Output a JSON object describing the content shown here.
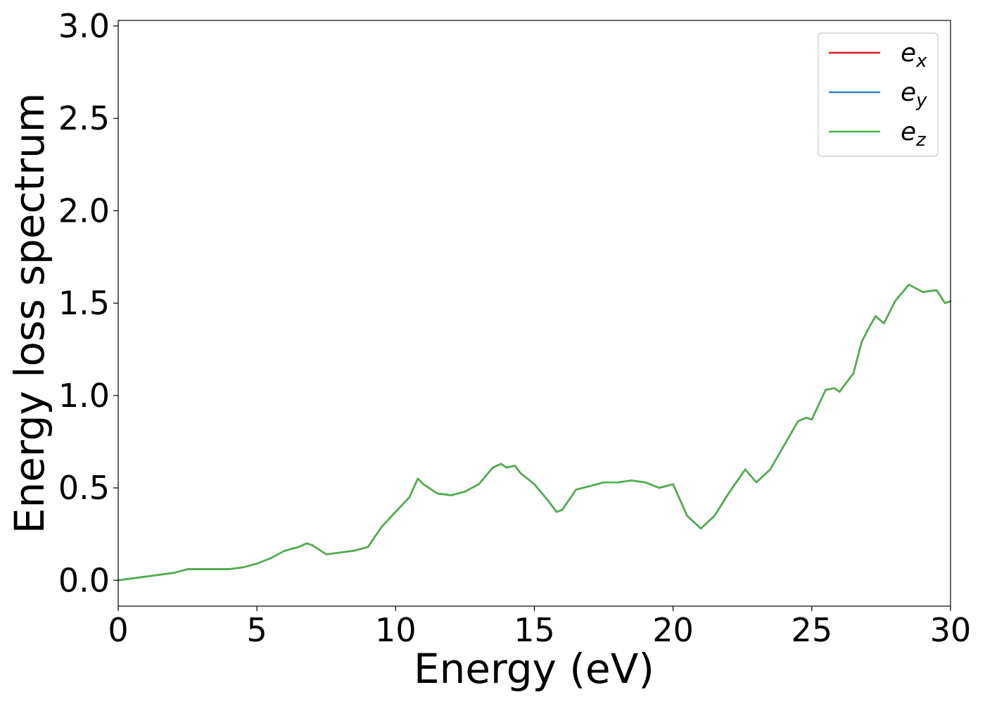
{
  "chart_data": {
    "type": "line",
    "title": "",
    "xlabel": "Energy (eV)",
    "ylabel": "Energy loss spectrum",
    "xlim": [
      0,
      30
    ],
    "ylim": [
      -0.14,
      3.03
    ],
    "xticks": [
      0,
      5,
      10,
      15,
      20,
      25,
      30
    ],
    "xtick_labels": [
      "0",
      "5",
      "10",
      "15",
      "20",
      "25",
      "30"
    ],
    "yticks": [
      0.0,
      0.5,
      1.0,
      1.5,
      2.0,
      2.5,
      3.0
    ],
    "ytick_labels": [
      "0.0",
      "0.5",
      "1.0",
      "1.5",
      "2.0",
      "2.5",
      "3.0"
    ],
    "grid": false,
    "legend_position": "top-right",
    "x": [
      0,
      0.5,
      1,
      1.5,
      2,
      2.5,
      3,
      3.5,
      4,
      4.5,
      5,
      5.5,
      6,
      6.5,
      6.8,
      7,
      7.5,
      8,
      8.5,
      9,
      9.5,
      10,
      10.5,
      10.8,
      11,
      11.5,
      12,
      12.5,
      13,
      13.5,
      13.8,
      14,
      14.3,
      14.5,
      15,
      15.5,
      15.8,
      16,
      16.5,
      17,
      17.5,
      18,
      18.5,
      19,
      19.5,
      20,
      20.5,
      21,
      21.5,
      22,
      22.6,
      23,
      23.5,
      24,
      24.5,
      24.8,
      25,
      25.5,
      25.8,
      26,
      26.5,
      26.8,
      27,
      27.3,
      27.6,
      28,
      28.5,
      29,
      29.5,
      29.8,
      30
    ],
    "series": [
      {
        "name": "e_x",
        "color": "#e41a1c",
        "y": [
          0.0,
          0.01,
          0.02,
          0.03,
          0.04,
          0.06,
          0.06,
          0.06,
          0.06,
          0.07,
          0.09,
          0.12,
          0.16,
          0.18,
          0.2,
          0.19,
          0.14,
          0.15,
          0.16,
          0.18,
          0.29,
          0.37,
          0.45,
          0.55,
          0.52,
          0.47,
          0.46,
          0.48,
          0.52,
          0.61,
          0.63,
          0.61,
          0.62,
          0.58,
          0.52,
          0.43,
          0.37,
          0.38,
          0.49,
          0.51,
          0.53,
          0.53,
          0.54,
          0.53,
          0.5,
          0.52,
          0.35,
          0.28,
          0.35,
          0.47,
          0.6,
          0.53,
          0.6,
          0.73,
          0.86,
          0.88,
          0.87,
          1.03,
          1.04,
          1.02,
          1.12,
          1.29,
          1.35,
          1.43,
          1.39,
          1.51,
          1.6,
          1.56,
          1.57,
          1.5,
          1.51
        ]
      },
      {
        "name": "e_y",
        "color": "#377eb8",
        "y": [
          0.0,
          0.01,
          0.02,
          0.03,
          0.04,
          0.06,
          0.06,
          0.06,
          0.06,
          0.07,
          0.09,
          0.12,
          0.16,
          0.18,
          0.2,
          0.19,
          0.14,
          0.15,
          0.16,
          0.18,
          0.29,
          0.37,
          0.45,
          0.55,
          0.52,
          0.47,
          0.46,
          0.48,
          0.52,
          0.61,
          0.63,
          0.61,
          0.62,
          0.58,
          0.52,
          0.43,
          0.37,
          0.38,
          0.49,
          0.51,
          0.53,
          0.53,
          0.54,
          0.53,
          0.5,
          0.52,
          0.35,
          0.28,
          0.35,
          0.47,
          0.6,
          0.53,
          0.6,
          0.73,
          0.86,
          0.88,
          0.87,
          1.03,
          1.04,
          1.02,
          1.12,
          1.29,
          1.35,
          1.43,
          1.39,
          1.51,
          1.6,
          1.56,
          1.57,
          1.5,
          1.51
        ]
      },
      {
        "name": "e_z",
        "color": "#4daf4a",
        "y": [
          0.0,
          0.01,
          0.02,
          0.03,
          0.04,
          0.06,
          0.06,
          0.06,
          0.06,
          0.07,
          0.09,
          0.12,
          0.16,
          0.18,
          0.2,
          0.19,
          0.14,
          0.15,
          0.16,
          0.18,
          0.29,
          0.37,
          0.45,
          0.55,
          0.52,
          0.47,
          0.46,
          0.48,
          0.52,
          0.61,
          0.63,
          0.61,
          0.62,
          0.58,
          0.52,
          0.43,
          0.37,
          0.38,
          0.49,
          0.51,
          0.53,
          0.53,
          0.54,
          0.53,
          0.5,
          0.52,
          0.35,
          0.28,
          0.35,
          0.47,
          0.6,
          0.53,
          0.6,
          0.73,
          0.86,
          0.88,
          0.87,
          1.03,
          1.04,
          1.02,
          1.12,
          1.29,
          1.35,
          1.43,
          1.39,
          1.51,
          1.6,
          1.56,
          1.57,
          1.5,
          1.51
        ]
      }
    ],
    "legend": [
      {
        "main": "e",
        "sub": "x",
        "color": "#e41a1c"
      },
      {
        "main": "e",
        "sub": "y",
        "color": "#377eb8"
      },
      {
        "main": "e",
        "sub": "z",
        "color": "#4daf4a"
      }
    ]
  }
}
